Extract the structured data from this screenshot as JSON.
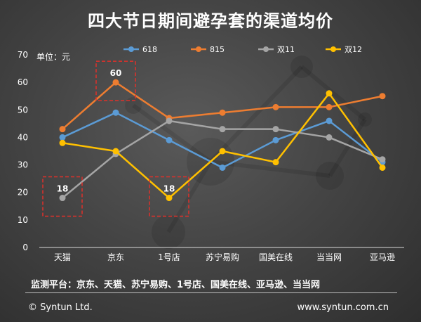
{
  "header": {
    "title": "四大节日期间避孕套的渠道均价",
    "unit_label": "单位：元"
  },
  "footer": {
    "platforms": "监测平台：京东、天猫、苏宁易购、1号店、国美在线、亚马逊、当当网",
    "copyright": "© Syntun Ltd.",
    "website": "www.syntun.com.cn"
  },
  "colors": {
    "618": "#5b9bd5",
    "815": "#ed7d31",
    "双11": "#a5a5a5",
    "双12": "#ffc000",
    "highlight_box": "#e0302a",
    "axis": "#d9d9d9"
  },
  "chart_data": {
    "type": "line",
    "title": "四大节日期间避孕套的渠道均价",
    "xlabel": "",
    "ylabel": "单位：元",
    "ylim": [
      0,
      70
    ],
    "yticks": [
      0,
      10,
      20,
      30,
      40,
      50,
      60,
      70
    ],
    "grid": false,
    "legend": "top",
    "categories": [
      "天猫",
      "京东",
      "1号店",
      "苏宁易购",
      "国美在线",
      "当当网",
      "亚马逊"
    ],
    "series": [
      {
        "name": "618",
        "values": [
          40,
          49,
          39,
          29,
          39,
          46,
          31
        ]
      },
      {
        "name": "815",
        "values": [
          43,
          60,
          47,
          49,
          51,
          51,
          55
        ]
      },
      {
        "name": "双11",
        "values": [
          18,
          34,
          46,
          43,
          43,
          40,
          32
        ]
      },
      {
        "name": "双12",
        "values": [
          38,
          35,
          18,
          35,
          31,
          56,
          29
        ]
      }
    ],
    "annotations": [
      {
        "series": "双11",
        "category": "天猫",
        "label": "18"
      },
      {
        "series": "815",
        "category": "京东",
        "label": "60"
      },
      {
        "series": "双12",
        "category": "1号店",
        "label": "18"
      }
    ]
  }
}
